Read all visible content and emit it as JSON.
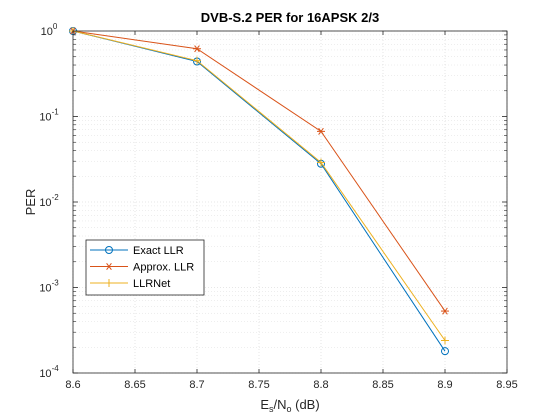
{
  "chart_data": {
    "type": "line",
    "title": "DVB-S.2 PER for 16APSK 2/3",
    "xlabel": {
      "base": "E",
      "sub1": "s",
      "mid": "/N",
      "sub2": "o",
      "tail": " (dB)"
    },
    "ylabel": "PER",
    "xlim": [
      8.6,
      8.95
    ],
    "ylim": [
      0.0001,
      1
    ],
    "yscale": "log",
    "grid": true,
    "minor_grid": true,
    "legend_position": "lower-left",
    "x_ticks": [
      "8.6",
      "8.65",
      "8.7",
      "8.75",
      "8.8",
      "8.85",
      "8.9",
      "8.95"
    ],
    "y_ticks": [
      {
        "base": "10",
        "exp": "-4"
      },
      {
        "base": "10",
        "exp": "-3"
      },
      {
        "base": "10",
        "exp": "-2"
      },
      {
        "base": "10",
        "exp": "-1"
      },
      {
        "base": "10",
        "exp": "0"
      }
    ],
    "x": [
      8.6,
      8.7,
      8.8,
      8.9
    ],
    "series": [
      {
        "name": "Exact LLR",
        "values": [
          1.0,
          0.44,
          0.028,
          0.00018
        ],
        "color": "#0072BD",
        "marker": "circle"
      },
      {
        "name": "Approx. LLR",
        "values": [
          1.0,
          0.62,
          0.067,
          0.00053
        ],
        "color": "#D95319",
        "marker": "asterisk"
      },
      {
        "name": "LLRNet",
        "values": [
          1.0,
          0.45,
          0.029,
          0.00024
        ],
        "color": "#EDB120",
        "marker": "plus"
      }
    ]
  }
}
